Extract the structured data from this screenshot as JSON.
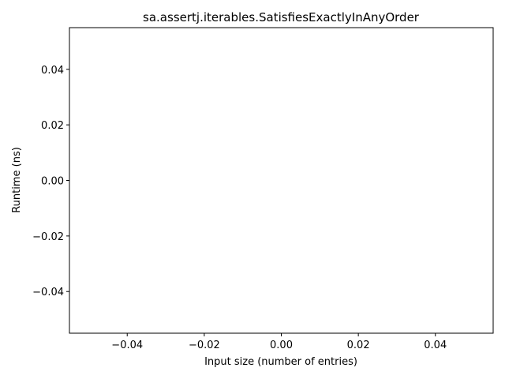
{
  "chart_data": {
    "type": "line",
    "title": "sa.assertj.iterables.SatisfiesExactlyInAnyOrder",
    "xlabel": "Input size (number of entries)",
    "ylabel": "Runtime (ns)",
    "xlim": [
      -0.055,
      0.055
    ],
    "ylim": [
      -0.055,
      0.055
    ],
    "x_ticks": [
      -0.04,
      -0.02,
      0.0,
      0.02,
      0.04
    ],
    "x_tick_labels": [
      "−0.04",
      "−0.02",
      "0.00",
      "0.02",
      "0.04"
    ],
    "y_ticks": [
      -0.04,
      -0.02,
      0.0,
      0.02,
      0.04
    ],
    "y_tick_labels": [
      "−0.04",
      "−0.02",
      "0.00",
      "0.02",
      "0.04"
    ],
    "grid": false,
    "series": [
      {
        "values": []
      }
    ]
  }
}
